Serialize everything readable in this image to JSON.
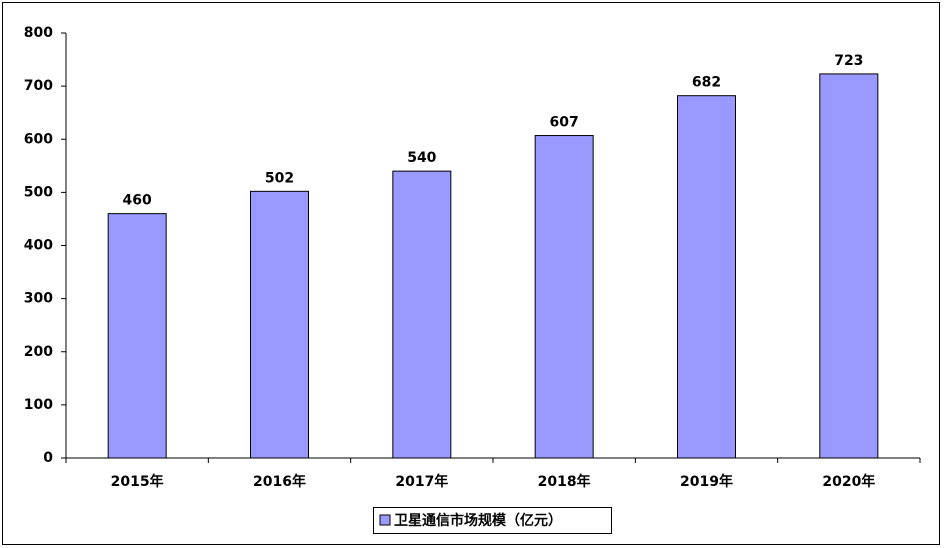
{
  "chart_data": {
    "type": "bar",
    "categories": [
      "2015年",
      "2016年",
      "2017年",
      "2018年",
      "2019年",
      "2020年"
    ],
    "series": [
      {
        "name": "卫星通信市场规模（亿元）",
        "color": "#9999ff",
        "values": [
          460,
          502,
          540,
          607,
          682,
          723
        ]
      }
    ],
    "ylim": [
      0,
      800
    ],
    "yticks": [
      0,
      100,
      200,
      300,
      400,
      500,
      600,
      700,
      800
    ],
    "grid": false,
    "legend": "bottom"
  }
}
